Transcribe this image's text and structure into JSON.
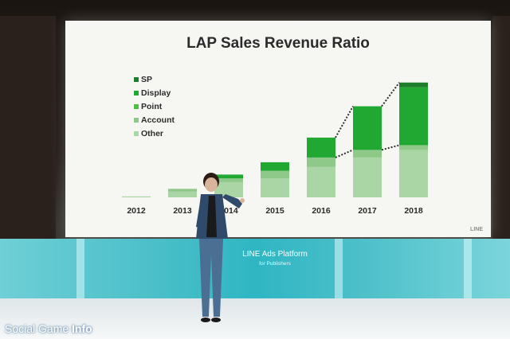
{
  "slide": {
    "title": "LAP Sales Revenue Ratio",
    "logo_text": "LINE",
    "legend": [
      {
        "label": "SP",
        "color": "#1e7d2b"
      },
      {
        "label": "Display",
        "color": "#21a832"
      },
      {
        "label": "Point",
        "color": "#4cbf44"
      },
      {
        "label": "Account",
        "color": "#8fc98a"
      },
      {
        "label": "Other",
        "color": "#a9d6a4"
      }
    ]
  },
  "chart_data": {
    "type": "bar",
    "title": "LAP Sales Revenue Ratio",
    "categories": [
      "2012",
      "2013",
      "2014",
      "2015",
      "2016",
      "2017",
      "2018"
    ],
    "series": [
      {
        "name": "Other",
        "values": [
          1,
          6,
          16,
          20,
          32,
          42,
          50
        ]
      },
      {
        "name": "Account",
        "values": [
          0,
          3,
          4,
          8,
          10,
          8,
          5
        ]
      },
      {
        "name": "Display",
        "values": [
          0,
          0,
          4,
          9,
          21,
          46,
          61
        ]
      },
      {
        "name": "SP",
        "values": [
          0,
          0,
          0,
          0,
          0,
          0,
          5
        ]
      }
    ],
    "ylim": [
      0,
      130
    ],
    "stacked": true,
    "grid": false,
    "legend_position": "top-left"
  },
  "stage": {
    "sign_title": "LINE Ads Platform",
    "sign_subtitle": "for Publishers"
  },
  "watermark": {
    "prefix": "Social Game ",
    "suffix": "Info"
  }
}
